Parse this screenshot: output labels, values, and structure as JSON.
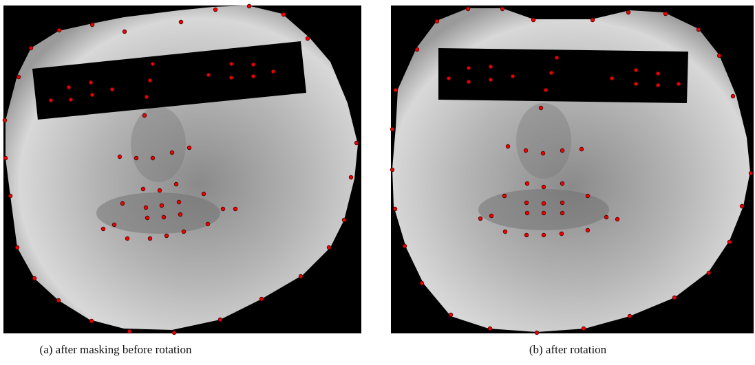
{
  "panels": [
    {
      "caption": "(a) after masking before rotation"
    },
    {
      "caption": "(b) after rotation"
    }
  ]
}
